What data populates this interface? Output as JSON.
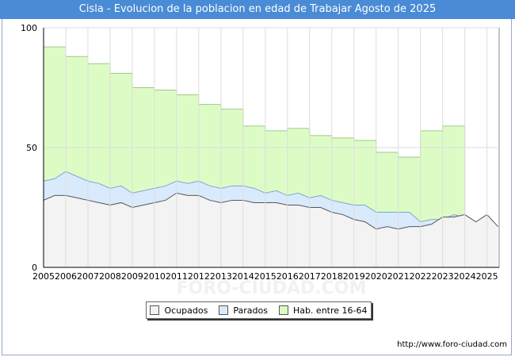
{
  "chart_data": {
    "type": "area",
    "title": "Cisla - Evolucion de la poblacion en edad de Trabajar Agosto de 2025",
    "xlabel": "",
    "ylabel": "",
    "ylim": [
      0,
      100
    ],
    "yticks": [
      0,
      50,
      100
    ],
    "xticks": [
      "2005",
      "2006",
      "2007",
      "2008",
      "2009",
      "2010",
      "2011",
      "2012",
      "2013",
      "2014",
      "2015",
      "2016",
      "2017",
      "2018",
      "2019",
      "2020",
      "2021",
      "2022",
      "2023",
      "2024",
      "2025"
    ],
    "xrange": [
      2005,
      2025.55
    ],
    "series": [
      {
        "name": "Hab. entre 16-64",
        "color": "#ddfcc5",
        "line": "#9cc98a",
        "x": [
          2005,
          2006,
          2007,
          2008,
          2009,
          2010,
          2011,
          2012,
          2013,
          2014,
          2015,
          2016,
          2017,
          2018,
          2019,
          2020,
          2021,
          2022,
          2023,
          2024
        ],
        "values": [
          92,
          88,
          85,
          81,
          75,
          74,
          72,
          68,
          66,
          59,
          57,
          58,
          55,
          54,
          53,
          48,
          46,
          57,
          59,
          0
        ]
      },
      {
        "name": "Parados",
        "color": "#d9eafc",
        "line": "#7aa7d6",
        "x": [
          2005,
          2005.5,
          2006,
          2006.5,
          2007,
          2007.5,
          2008,
          2008.5,
          2009,
          2009.5,
          2010,
          2010.5,
          2011,
          2011.5,
          2012,
          2012.5,
          2013,
          2013.5,
          2014,
          2014.5,
          2015,
          2015.5,
          2016,
          2016.5,
          2017,
          2017.5,
          2018,
          2018.5,
          2019,
          2019.5,
          2020,
          2020.5,
          2021,
          2021.5,
          2022,
          2022.5,
          2023,
          2023.5,
          2024
        ],
        "values": [
          36,
          37,
          40,
          38,
          36,
          35,
          33,
          34,
          31,
          32,
          33,
          34,
          36,
          35,
          36,
          34,
          33,
          34,
          34,
          33,
          31,
          32,
          30,
          31,
          29,
          30,
          28,
          27,
          26,
          26,
          23,
          23,
          23,
          23,
          19,
          20,
          20,
          22,
          21
        ]
      },
      {
        "name": "Ocupados",
        "color": "#f3f3f3",
        "line": "#555555",
        "x": [
          2005,
          2005.5,
          2006,
          2006.5,
          2007,
          2007.5,
          2008,
          2008.5,
          2009,
          2009.5,
          2010,
          2010.5,
          2011,
          2011.5,
          2012,
          2012.5,
          2013,
          2013.5,
          2014,
          2014.5,
          2015,
          2015.5,
          2016,
          2016.5,
          2017,
          2017.5,
          2018,
          2018.5,
          2019,
          2019.5,
          2020,
          2020.5,
          2021,
          2021.5,
          2022,
          2022.5,
          2023,
          2023.5,
          2024,
          2024.5,
          2025,
          2025.5
        ],
        "values": [
          28,
          30,
          30,
          29,
          28,
          27,
          26,
          27,
          25,
          26,
          27,
          28,
          31,
          30,
          30,
          28,
          27,
          28,
          28,
          27,
          27,
          27,
          26,
          26,
          25,
          25,
          23,
          22,
          20,
          19,
          16,
          17,
          16,
          17,
          17,
          18,
          21,
          21,
          22,
          19,
          22,
          17
        ]
      }
    ]
  },
  "legend": {
    "items": [
      {
        "label": "Ocupados",
        "color": "#f3f3f3"
      },
      {
        "label": "Parados",
        "color": "#d9eafc"
      },
      {
        "label": "Hab. entre 16-64",
        "color": "#ddfcc5"
      }
    ]
  },
  "footer": {
    "url": "http://www.foro-ciudad.com",
    "watermark": "FORO-CIUDAD.COM"
  }
}
